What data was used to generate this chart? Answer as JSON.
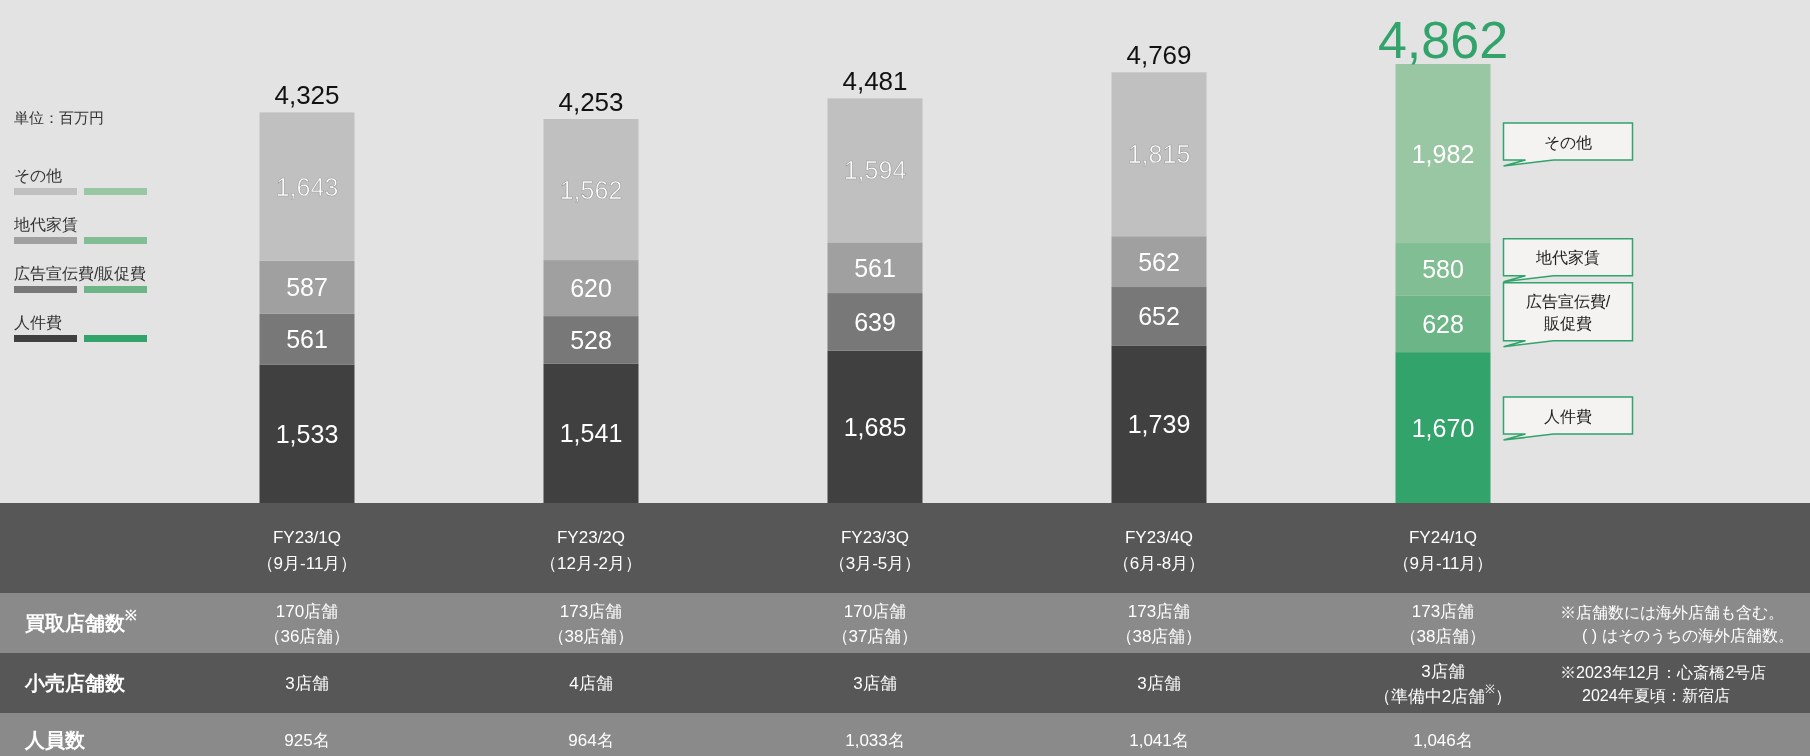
{
  "chart_data": {
    "type": "bar",
    "stacked": true,
    "legend": "right",
    "categories": [
      "FY23/1Q\n（9月-11月）",
      "FY23/2Q\n（12月-2月）",
      "FY23/3Q\n（3月-5月）",
      "FY23/4Q\n（6月-8月）",
      "FY24/1Q\n（9月-11月）"
    ],
    "series": [
      {
        "name": "人件費",
        "color": "#404040",
        "colors": [
          "#404040",
          "#404040",
          "#404040",
          "#404040",
          "#31a36b"
        ],
        "values": [
          1533,
          1541,
          1685,
          1739,
          1670
        ],
        "value_labels": [
          "1,533",
          "1,541",
          "1,685",
          "1,739",
          "1,670"
        ]
      },
      {
        "name": "広告宣伝費/販促費",
        "color": "#787878",
        "colors": [
          "#787878",
          "#787878",
          "#787878",
          "#787878",
          "#6cb587"
        ],
        "values": [
          561,
          528,
          639,
          652,
          628
        ],
        "value_labels": [
          "561",
          "528",
          "639",
          "652",
          "628"
        ]
      },
      {
        "name": "地代家賃",
        "color": "#a0a0a0",
        "colors": [
          "#a0a0a0",
          "#a0a0a0",
          "#a0a0a0",
          "#a0a0a0",
          "#82be93"
        ],
        "values": [
          587,
          620,
          561,
          562,
          580
        ],
        "value_labels": [
          "587",
          "620",
          "561",
          "562",
          "580"
        ]
      },
      {
        "name": "その他",
        "color": "#c0c0c0",
        "colors": [
          "#c0c0c0",
          "#c0c0c0",
          "#c0c0c0",
          "#c0c0c0",
          "#99c7a3"
        ],
        "values": [
          1643,
          1562,
          1594,
          1815,
          1982
        ],
        "value_labels": [
          "1,643",
          "1,562",
          "1,594",
          "1,815",
          "1,982"
        ]
      }
    ],
    "totals": [
      "4,325",
      "4,253",
      "4,481",
      "4,769",
      "4,862"
    ],
    "annotations": [
      "単位：百万円",
      "買取店舗数$^{※}$",
      "170店舗（36店舗）",
      "173店舗（38店舗）",
      "170店舗（37店舗）",
      "173店舗（38店舗）",
      "173店舗（38店舗）",
      "小売店舗数",
      "3店舗",
      "4店舗",
      "3店舗",
      "3店舗",
      "3店舗（準備中2店舗$^{※}$）",
      "人員数",
      "925名",
      "964名",
      "1,033名",
      "1,041名",
      "1,046名",
      "※店舗数には海外店舗も含む。\n( ) はそのうちの海外店舗数。",
      "※2023年12月：心斎橋2号店\n2024年夏頃：新宿店"
    ]
  }
}
